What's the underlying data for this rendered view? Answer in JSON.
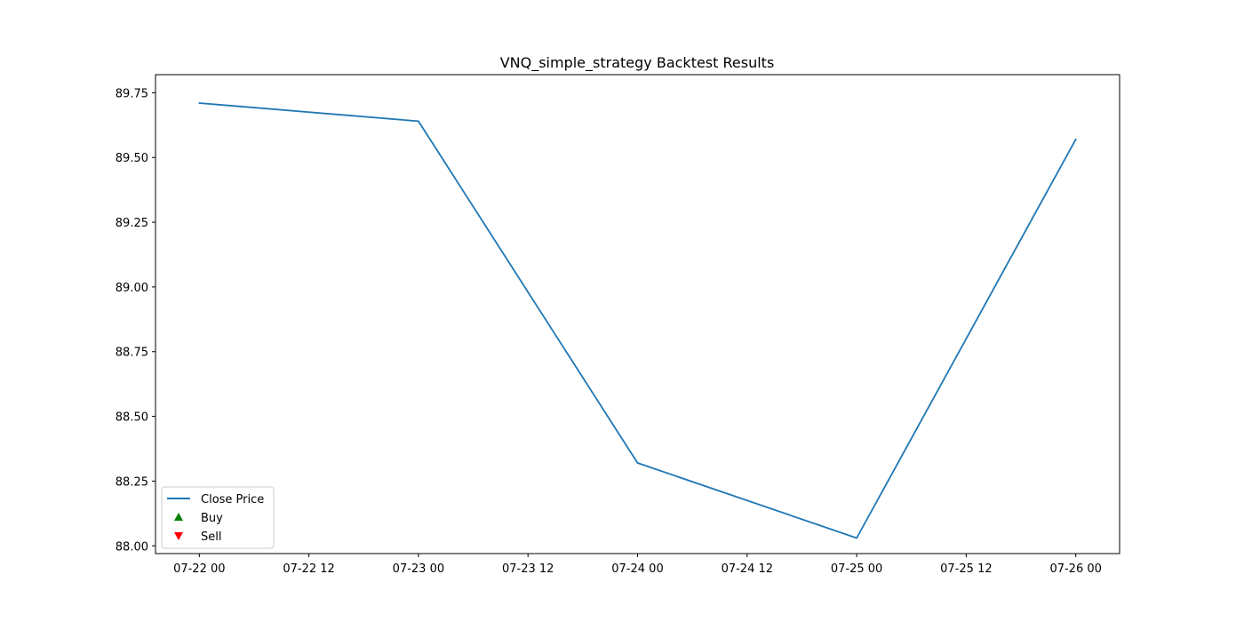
{
  "chart_data": {
    "type": "line",
    "title": "VNQ_simple_strategy Backtest Results",
    "xlabel": "",
    "ylabel": "",
    "x_ticks": [
      "07-22 00",
      "07-22 12",
      "07-23 00",
      "07-23 12",
      "07-24 00",
      "07-24 12",
      "07-25 00",
      "07-25 12",
      "07-26 00"
    ],
    "y_ticks": [
      "88.00",
      "88.25",
      "88.50",
      "88.75",
      "89.00",
      "89.25",
      "89.50",
      "89.75"
    ],
    "xlim": [
      "07-21 19:12",
      "07-26 04:48"
    ],
    "ylim": [
      87.97,
      89.82
    ],
    "grid": false,
    "legend_position": "lower-left",
    "series": [
      {
        "name": "Close Price",
        "color": "#1f77b4",
        "x": [
          "07-22 00",
          "07-23 00",
          "07-24 00",
          "07-25 00",
          "07-26 00"
        ],
        "values": [
          89.71,
          89.64,
          88.32,
          88.03,
          89.57
        ]
      }
    ],
    "legend": [
      {
        "label": "Close Price",
        "marker": "line",
        "color": "#1f77b4"
      },
      {
        "label": "Buy",
        "marker": "triangle-up",
        "color": "#008000"
      },
      {
        "label": "Sell",
        "marker": "triangle-down",
        "color": "#ff0000"
      }
    ]
  }
}
